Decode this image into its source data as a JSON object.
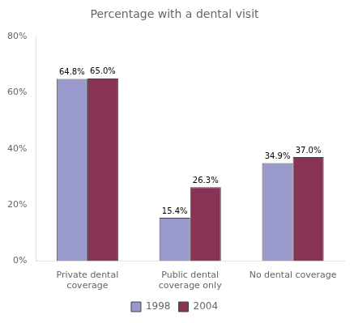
{
  "chart_data": {
    "type": "bar",
    "title": "Percentage with a dental visit",
    "categories": [
      "Private dental\ncoverage",
      "Public dental\ncoverage only",
      "No dental coverage"
    ],
    "series": [
      {
        "name": "1998",
        "color": "#9999CC",
        "values": [
          64.8,
          15.4,
          34.9
        ],
        "value_labels": [
          "64.8%",
          "15.4%",
          "34.9%"
        ]
      },
      {
        "name": "2004",
        "color": "#883355",
        "values": [
          65.0,
          26.3,
          37.0
        ],
        "value_labels": [
          "65.0%",
          "26.3%",
          "37.0%"
        ]
      }
    ],
    "ylim": [
      0,
      80
    ],
    "yticks": [
      {
        "value": 0,
        "label": "0%"
      },
      {
        "value": 20,
        "label": "20%"
      },
      {
        "value": 40,
        "label": "40%"
      },
      {
        "value": 60,
        "label": "60%"
      },
      {
        "value": 80,
        "label": "80%"
      }
    ],
    "grid": false,
    "legend": "bottom",
    "data_labels": true
  }
}
